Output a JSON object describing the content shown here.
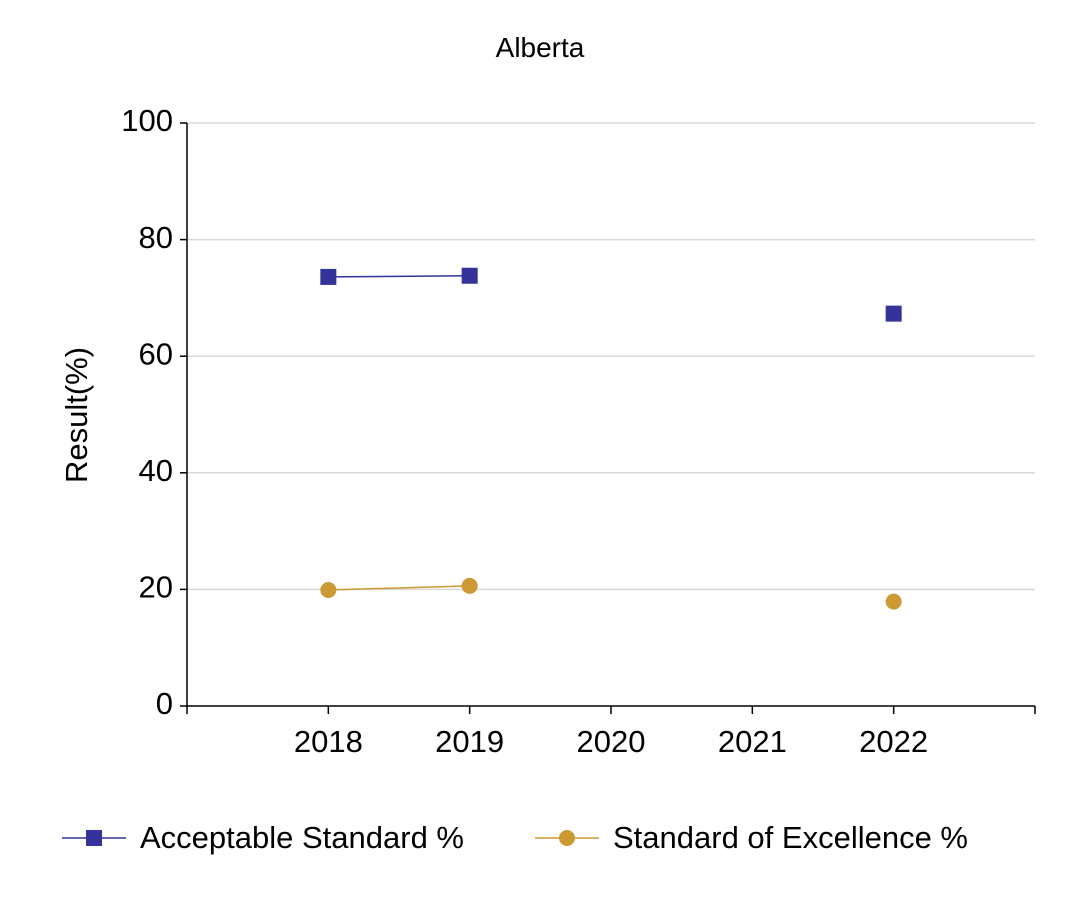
{
  "chart_data": {
    "type": "line",
    "title": "Alberta",
    "ylabel": "Result(%)",
    "xlabel": "",
    "categories": [
      "2018",
      "2019",
      "2020",
      "2021",
      "2022"
    ],
    "ylim": [
      0,
      100
    ],
    "yticks": [
      0,
      20,
      40,
      60,
      80,
      100
    ],
    "grid": true,
    "legend_position": "bottom",
    "series": [
      {
        "name": "Acceptable Standard %",
        "color": "#333399",
        "marker": "square",
        "values": [
          73.6,
          73.8,
          null,
          null,
          67.3
        ]
      },
      {
        "name": "Standard of Excellence %",
        "color": "#CC9933",
        "marker": "circle",
        "values": [
          19.9,
          20.6,
          null,
          null,
          17.9
        ]
      }
    ]
  }
}
